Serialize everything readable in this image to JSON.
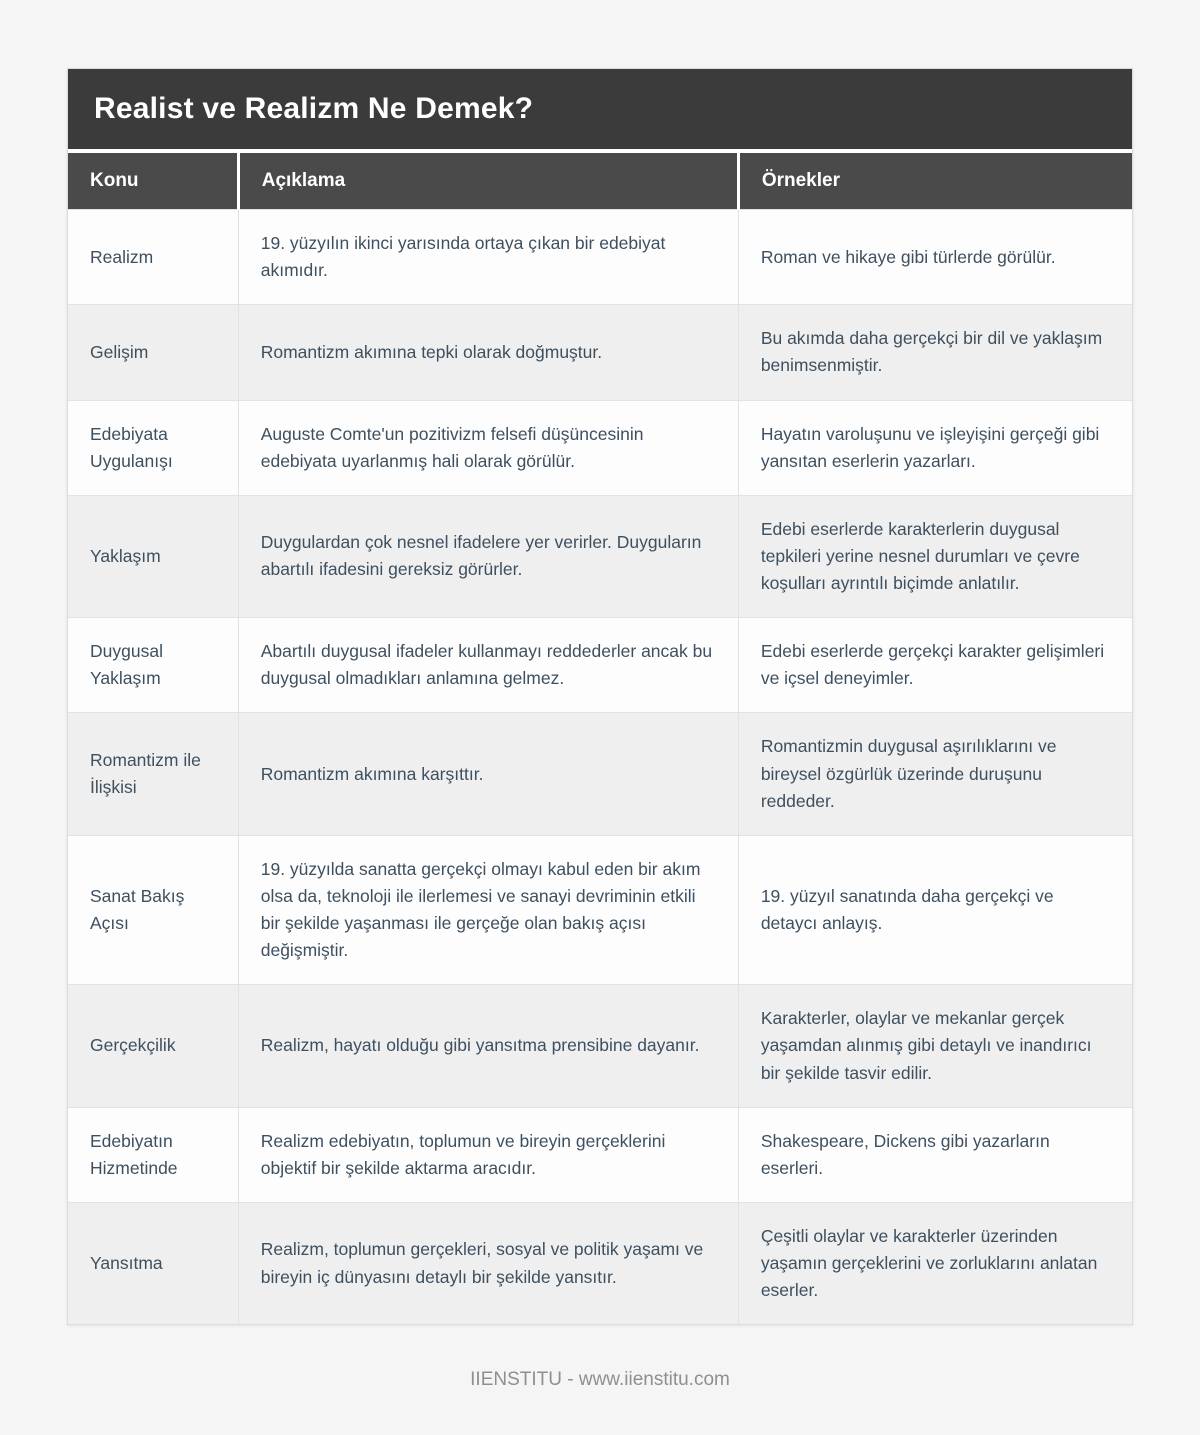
{
  "page": {
    "title": "Realist ve Realizm Ne Demek?",
    "footer": "IIENSTITU - www.iienstitu.com"
  },
  "theme": {
    "title_bar_bg": "#3b3b3b",
    "header_row_bg": "#4a4a4a",
    "header_text": "#ffffff",
    "body_text": "#3e5060",
    "row_alt_bg": "#efefef",
    "page_bg": "#f5f5f5"
  },
  "table": {
    "columns": [
      "Konu",
      "Açıklama",
      "Örnekler"
    ],
    "rows": [
      {
        "konu": "Realizm",
        "aciklama": "19. yüzyılın ikinci yarısında ortaya çıkan bir edebiyat akımıdır.",
        "ornekler": "Roman ve hikaye gibi türlerde görülür."
      },
      {
        "konu": "Gelişim",
        "aciklama": "Romantizm akımına tepki olarak doğmuştur.",
        "ornekler": "Bu akımda daha gerçekçi bir dil ve yaklaşım benimsenmiştir."
      },
      {
        "konu": "Edebiyata Uygulanışı",
        "aciklama": "Auguste Comte'un pozitivizm felsefi düşüncesinin edebiyata uyarlanmış hali olarak görülür.",
        "ornekler": "Hayatın varoluşunu ve işleyişini gerçeği gibi yansıtan eserlerin yazarları."
      },
      {
        "konu": "Yaklaşım",
        "aciklama": "Duygulardan çok nesnel ifadelere yer verirler. Duyguların abartılı ifadesini gereksiz görürler.",
        "ornekler": "Edebi eserlerde karakterlerin duygusal tepkileri yerine nesnel durumları ve çevre koşulları ayrıntılı biçimde anlatılır."
      },
      {
        "konu": "Duygusal Yaklaşım",
        "aciklama": "Abartılı duygusal ifadeler kullanmayı reddederler ancak bu duygusal olmadıkları anlamına gelmez.",
        "ornekler": "Edebi eserlerde gerçekçi karakter gelişimleri ve içsel deneyimler."
      },
      {
        "konu": "Romantizm ile İlişkisi",
        "aciklama": "Romantizm akımına karşıttır.",
        "ornekler": "Romantizmin duygusal aşırılıklarını ve bireysel özgürlük üzerinde duruşunu reddeder."
      },
      {
        "konu": "Sanat Bakış Açısı",
        "aciklama": "19. yüzyılda sanatta gerçekçi olmayı kabul eden bir akım olsa da, teknoloji ile ilerlemesi ve sanayi devriminin etkili bir şekilde yaşanması ile gerçeğe olan bakış açısı değişmiştir.",
        "ornekler": "19. yüzyıl sanatında daha gerçekçi ve detaycı anlayış."
      },
      {
        "konu": "Gerçekçilik",
        "aciklama": "Realizm, hayatı olduğu gibi yansıtma prensibine dayanır.",
        "ornekler": "Karakterler, olaylar ve mekanlar gerçek yaşamdan alınmış gibi detaylı ve inandırıcı bir şekilde tasvir edilir."
      },
      {
        "konu": "Edebiyatın Hizmetinde",
        "aciklama": "Realizm edebiyatın, toplumun ve bireyin gerçeklerini objektif bir şekilde aktarma aracıdır.",
        "ornekler": "Shakespeare, Dickens gibi yazarların eserleri."
      },
      {
        "konu": "Yansıtma",
        "aciklama": "Realizm, toplumun gerçekleri, sosyal ve politik yaşamı ve bireyin iç dünyasını detaylı bir şekilde yansıtır.",
        "ornekler": "Çeşitli olaylar ve karakterler üzerinden yaşamın gerçeklerini ve zorluklarını anlatan eserler."
      }
    ]
  }
}
